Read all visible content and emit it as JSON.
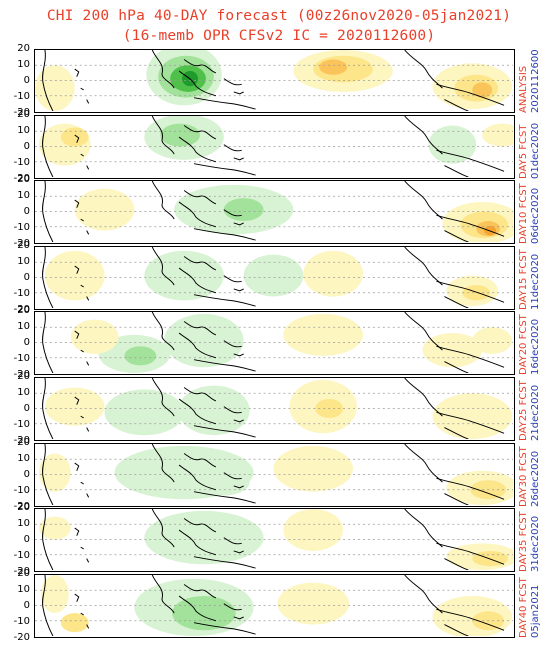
{
  "title": {
    "line1": "CHI 200 hPa 40-DAY forecast (00z26nov2020-05jan2021)",
    "line2": "(16-memb OPR CFSv2 IC = 2020112600)"
  },
  "y_ticks": [
    "20",
    "10",
    "0",
    "-10",
    "-20"
  ],
  "colors": {
    "title": "#e8402a",
    "label_red": "#e8402a",
    "label_blue": "#2a3fb0",
    "green_light": "#d8f3d3",
    "green_mid": "#a3e29b",
    "green_dark": "#4fc04a",
    "green_darker": "#1f9a2c",
    "yellow_light": "#fdf6c0",
    "yellow_mid": "#fde58a",
    "orange": "#fbc45a",
    "orange_dark": "#f5a430"
  },
  "panels": [
    {
      "label": "ANALYSIS",
      "date": "2020112600"
    },
    {
      "label": "DAY5 FCST",
      "date": "01dec2020"
    },
    {
      "label": "DAY10 FCST",
      "date": "06dec2020"
    },
    {
      "label": "DAY15 FCST",
      "date": "11dec2020"
    },
    {
      "label": "DAY20 FCST",
      "date": "16dec2020"
    },
    {
      "label": "DAY25 FCST",
      "date": "21dec2020"
    },
    {
      "label": "DAY30 FCST",
      "date": "26dec2020"
    },
    {
      "label": "DAY35 FCST",
      "date": "31dec2020"
    },
    {
      "label": "DAY40 FCST",
      "date": "05jan2021"
    }
  ]
}
